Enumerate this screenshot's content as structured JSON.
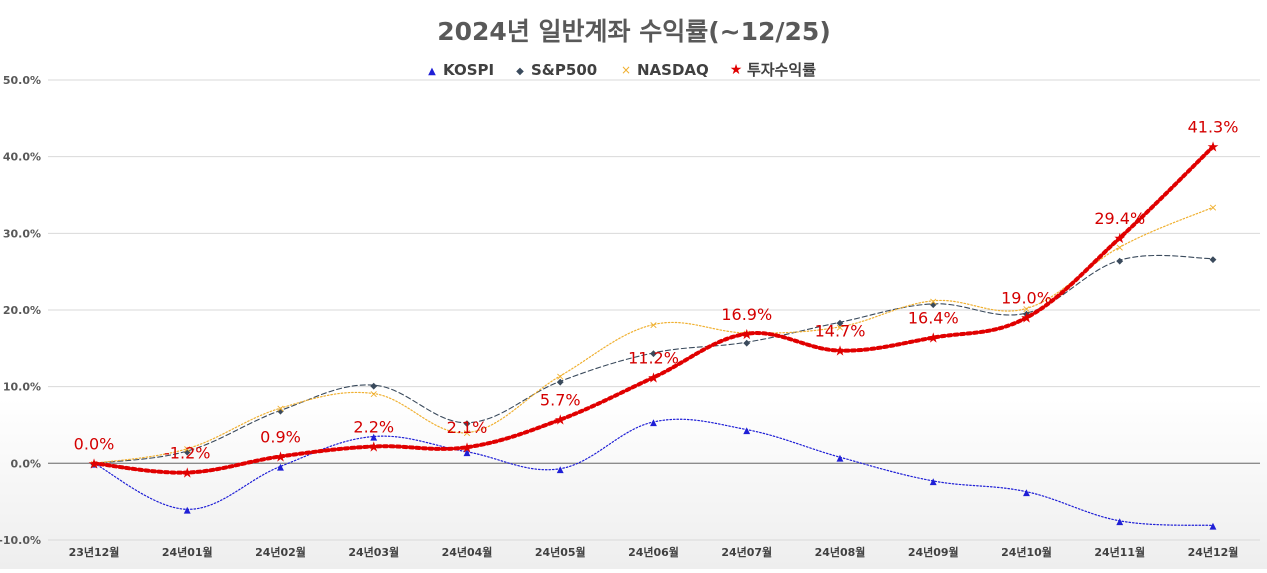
{
  "chart_data": {
    "type": "line",
    "title": "2024년 일반계좌 수익률(~12/25)",
    "xlabel": "",
    "ylabel": "",
    "categories": [
      "23년12월",
      "24년01월",
      "24년02월",
      "24년03월",
      "24년04월",
      "24년05월",
      "24년06월",
      "24년07월",
      "24년08월",
      "24년09월",
      "24년10월",
      "24년11월",
      "24년12월"
    ],
    "yticks": [
      "50.0%",
      "40.0%",
      "30.0%",
      "20.0%",
      "10.0%",
      "0.0%",
      "-10.0%"
    ],
    "ylim": [
      -10,
      50
    ],
    "grid": true,
    "legend_position": "top",
    "series": [
      {
        "name": "KOSPI",
        "color": "#1f1fd6",
        "marker": "▲",
        "style": "dotted",
        "values": [
          0.0,
          -6.0,
          -0.4,
          3.5,
          1.5,
          -0.7,
          5.4,
          4.4,
          0.8,
          -2.3,
          -3.7,
          -7.5,
          -8.1
        ]
      },
      {
        "name": "S&P500",
        "color": "#3a4a5c",
        "marker": "◆",
        "style": "dashed",
        "values": [
          0.0,
          1.6,
          6.9,
          10.2,
          5.3,
          10.7,
          14.4,
          15.8,
          18.4,
          20.8,
          19.6,
          26.5,
          26.7
        ]
      },
      {
        "name": "NASDAQ",
        "color": "#f0b030",
        "marker": "×",
        "style": "dotted",
        "values": [
          0.0,
          1.9,
          7.2,
          9.1,
          4.0,
          11.4,
          18.1,
          17.0,
          17.8,
          21.2,
          20.2,
          28.2,
          33.4
        ]
      },
      {
        "name": "투자수익률",
        "color": "#e00000",
        "marker": "★",
        "style": "thick-dotted",
        "values": [
          0.0,
          -1.2,
          0.9,
          2.2,
          2.1,
          5.7,
          11.2,
          16.9,
          14.7,
          16.4,
          19.0,
          29.4,
          41.3
        ],
        "labels": [
          "0.0%",
          "-1.2%",
          "0.9%",
          "2.2%",
          "2.1%",
          "5.7%",
          "11.2%",
          "16.9%",
          "14.7%",
          "16.4%",
          "19.0%",
          "29.4%",
          "41.3%"
        ]
      }
    ]
  }
}
